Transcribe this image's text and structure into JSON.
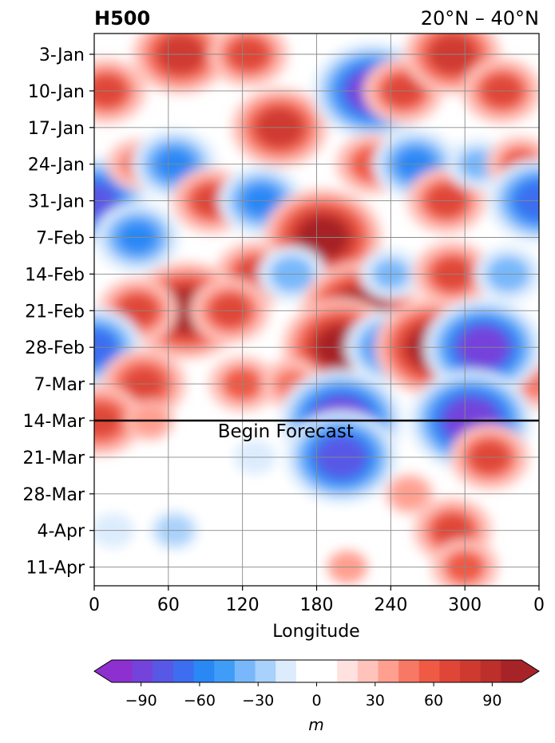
{
  "chart_data": {
    "type": "heatmap",
    "title_left": "H500",
    "title_right": "20°N – 40°N",
    "xlabel": "Longitude",
    "x_ticks": [
      "0",
      "60",
      "120",
      "180",
      "240",
      "300",
      "0"
    ],
    "x_tick_values": [
      0,
      60,
      120,
      180,
      240,
      300,
      360
    ],
    "xlim": [
      0,
      360
    ],
    "y_ticks": [
      "3-Jan",
      "10-Jan",
      "17-Jan",
      "24-Jan",
      "31-Jan",
      "7-Feb",
      "14-Feb",
      "21-Feb",
      "28-Feb",
      "7-Mar",
      "14-Mar",
      "21-Mar",
      "28-Mar",
      "4-Apr",
      "11-Apr"
    ],
    "y_axis": "time, increasing downward",
    "grid": true,
    "annotation": {
      "text": "Begin Forecast",
      "at": "14-Mar"
    },
    "colorbar": {
      "label": "m",
      "ticks": [
        "−90",
        "−60",
        "−30",
        "0",
        "30",
        "60",
        "90"
      ],
      "tick_values": [
        -90,
        -60,
        -30,
        0,
        30,
        60,
        90
      ],
      "range": [
        -105,
        105
      ],
      "step": 10,
      "extend": "both",
      "colors": [
        "#8e30d0",
        "#7443db",
        "#5858e6",
        "#3d6ef0",
        "#2a88f5",
        "#3f9df7",
        "#78b8fa",
        "#a8d1fb",
        "#dcecfd",
        "#ffffff",
        "#ffffff",
        "#ffe2e0",
        "#ffc3bb",
        "#ff9f8f",
        "#f87866",
        "#ef5a45",
        "#df4638",
        "#cf3a30",
        "#bd2f2a",
        "#a62428"
      ]
    },
    "anomalies": [
      {
        "lon": 10,
        "date": "10-Jan",
        "value": 55
      },
      {
        "lon": 70,
        "date": "3-Jan",
        "value": 70
      },
      {
        "lon": 125,
        "date": "3-Jan",
        "value": 55
      },
      {
        "lon": 150,
        "date": "17-Jan",
        "value": 70
      },
      {
        "lon": 205,
        "date": "10-Jan",
        "value": 40
      },
      {
        "lon": 225,
        "date": "10-Jan",
        "value": -90
      },
      {
        "lon": 250,
        "date": "10-Jan",
        "value": 55
      },
      {
        "lon": 290,
        "date": "3-Jan",
        "value": 70
      },
      {
        "lon": 330,
        "date": "10-Jan",
        "value": 55
      },
      {
        "lon": 0,
        "date": "31-Jan",
        "value": -80
      },
      {
        "lon": 35,
        "date": "24-Jan",
        "value": 40
      },
      {
        "lon": 65,
        "date": "24-Jan",
        "value": -60
      },
      {
        "lon": 95,
        "date": "31-Jan",
        "value": 55
      },
      {
        "lon": 135,
        "date": "31-Jan",
        "value": -60
      },
      {
        "lon": 185,
        "date": "7-Feb",
        "value": 90
      },
      {
        "lon": 225,
        "date": "24-Jan",
        "value": 50
      },
      {
        "lon": 260,
        "date": "24-Jan",
        "value": -60
      },
      {
        "lon": 285,
        "date": "31-Jan",
        "value": 55
      },
      {
        "lon": 310,
        "date": "24-Jan",
        "value": -40
      },
      {
        "lon": 345,
        "date": "24-Jan",
        "value": 45
      },
      {
        "lon": 360,
        "date": "31-Jan",
        "value": -75
      },
      {
        "lon": 35,
        "date": "7-Feb",
        "value": -60
      },
      {
        "lon": 130,
        "date": "14-Feb",
        "value": 55
      },
      {
        "lon": 75,
        "date": "21-Feb",
        "value": 90
      },
      {
        "lon": 35,
        "date": "21-Feb",
        "value": 55
      },
      {
        "lon": 110,
        "date": "21-Feb",
        "value": 55
      },
      {
        "lon": 160,
        "date": "14-Feb",
        "value": -45
      },
      {
        "lon": 215,
        "date": "21-Feb",
        "value": 90
      },
      {
        "lon": 200,
        "date": "28-Feb",
        "value": 90
      },
      {
        "lon": 240,
        "date": "28-Feb",
        "value": -65
      },
      {
        "lon": 240,
        "date": "14-Feb",
        "value": -40
      },
      {
        "lon": 275,
        "date": "28-Feb",
        "value": 90
      },
      {
        "lon": 290,
        "date": "14-Feb",
        "value": 55
      },
      {
        "lon": 335,
        "date": "14-Feb",
        "value": -45
      },
      {
        "lon": 355,
        "date": "7-Mar",
        "value": 40
      },
      {
        "lon": 0,
        "date": "28-Feb",
        "value": -70
      },
      {
        "lon": 40,
        "date": "7-Mar",
        "value": 60
      },
      {
        "lon": 120,
        "date": "7-Mar",
        "value": 45
      },
      {
        "lon": 160,
        "date": "7-Mar",
        "value": 40
      },
      {
        "lon": 315,
        "date": "28-Feb",
        "value": -90
      },
      {
        "lon": 200,
        "date": "14-Mar",
        "value": -95
      },
      {
        "lon": 305,
        "date": "14-Mar",
        "value": -95
      },
      {
        "lon": 5,
        "date": "14-Mar",
        "value": 60
      },
      {
        "lon": 45,
        "date": "14-Mar",
        "value": 30
      },
      {
        "lon": 130,
        "date": "21-Mar",
        "value": -25
      },
      {
        "lon": 200,
        "date": "21-Mar",
        "value": -85
      },
      {
        "lon": 255,
        "date": "28-Mar",
        "value": 30
      },
      {
        "lon": 320,
        "date": "21-Mar",
        "value": 55
      },
      {
        "lon": 290,
        "date": "4-Apr",
        "value": 55
      },
      {
        "lon": 300,
        "date": "11-Apr",
        "value": 45
      },
      {
        "lon": 65,
        "date": "4-Apr",
        "value": -30
      },
      {
        "lon": 15,
        "date": "4-Apr",
        "value": -25
      },
      {
        "lon": 205,
        "date": "11-Apr",
        "value": 25
      },
      {
        "lon": 150,
        "date": "4-Apr",
        "value": -15
      }
    ]
  }
}
